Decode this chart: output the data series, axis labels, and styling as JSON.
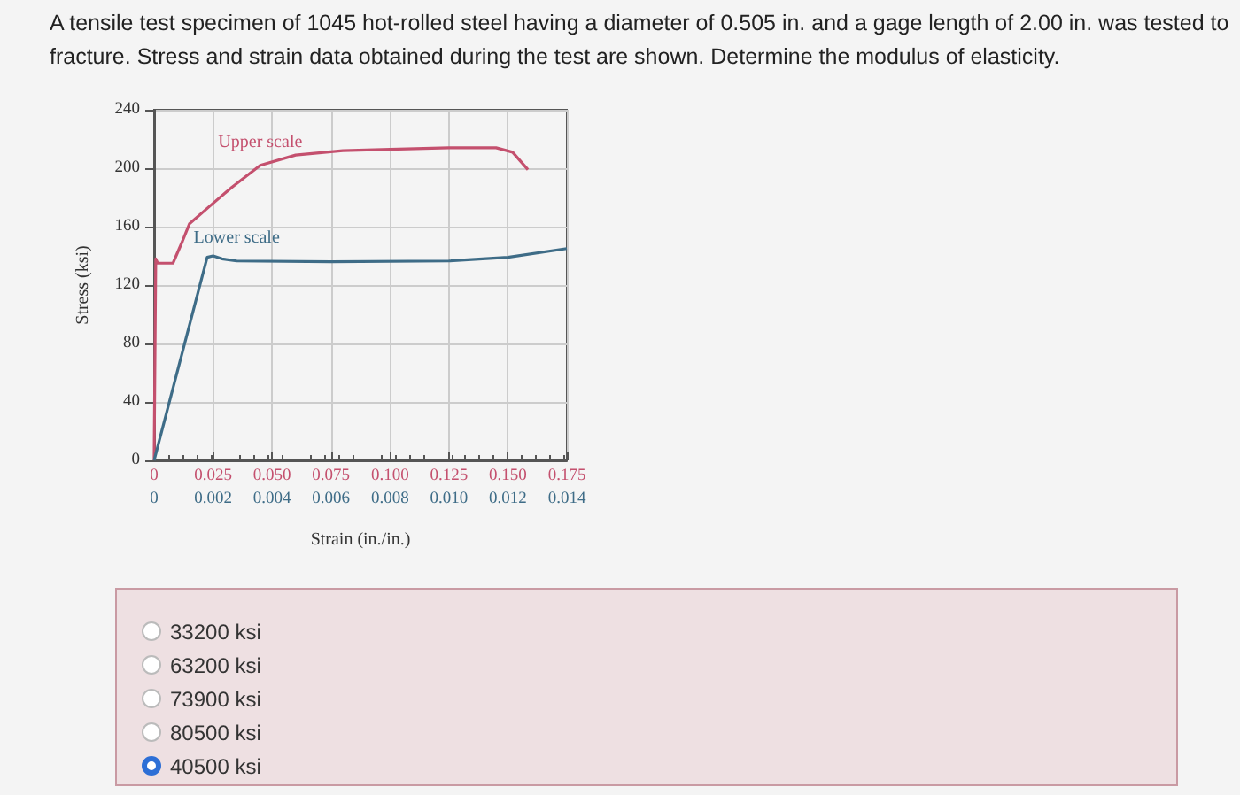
{
  "chart_data": {
    "type": "line",
    "title": "A tensile test specimen of 1045 hot-rolled steel having a diameter of 0.505 in. and a gage length of 2.00 in. was tested to fracture. Stress and strain data obtained during the test are shown. Determine the modulus of elasticity.",
    "xlabel": "Strain (in./in.)",
    "ylabel": "Stress (ksi)",
    "xlim": [
      0,
      0.014
    ],
    "xticks": [
      0,
      0.002,
      0.004,
      0.006,
      0.008,
      {
        "value": 0.01,
        "label": "0.010"
      },
      0.012,
      0.014
    ],
    "x2lim": [
      0,
      0.175
    ],
    "x2ticks": [
      0,
      0.025,
      {
        "value": 0.05,
        "label": "0.050"
      },
      0.075,
      {
        "value": 0.1,
        "label": "0.100"
      },
      0.125,
      {
        "value": 0.15,
        "label": "0.150"
      },
      0.175
    ],
    "ylim": [
      0,
      240
    ],
    "yticks": [
      0,
      40,
      80,
      120,
      160,
      200,
      240
    ],
    "grid": true,
    "legend": false,
    "series": [
      {
        "name": "Upper scale",
        "color": "#c4506e",
        "axis": "x2",
        "x": [
          0,
          0.0007,
          0.0015,
          0.008,
          0.012,
          0.015,
          0.025,
          0.033,
          0.045,
          0.06,
          0.08,
          0.1,
          0.125,
          0.145,
          0.152,
          0.1585
        ],
        "values": [
          0,
          138,
          135,
          135,
          150,
          162,
          176,
          187,
          202,
          209,
          212,
          213,
          214,
          214,
          211,
          199
        ]
      },
      {
        "name": "Lower scale",
        "color": "#3e6c87",
        "x": [
          0,
          0.0018,
          0.002,
          0.0023,
          0.0028,
          0.006,
          0.01,
          0.012,
          0.014
        ],
        "values": [
          0,
          139,
          140,
          138,
          136.5,
          136,
          136.5,
          139,
          145
        ]
      }
    ],
    "annotations": [
      "33200 ksi",
      "63200 ksi",
      "73900 ksi",
      "80500 ksi",
      "40500 ksi"
    ]
  }
}
